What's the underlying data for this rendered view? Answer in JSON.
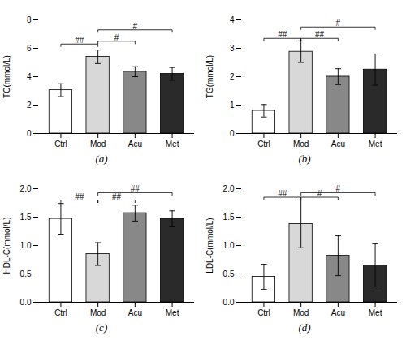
{
  "chart_data": [
    {
      "type": "bar",
      "caption": "(a)",
      "ylabel": "TC(mmol/L)",
      "ylim": [
        0,
        8
      ],
      "yticks": [
        0,
        2,
        4,
        6,
        8
      ],
      "categories": [
        "Ctrl",
        "Mod",
        "Acu",
        "Met"
      ],
      "values": [
        3.05,
        5.4,
        4.35,
        4.2
      ],
      "errors": [
        0.45,
        0.48,
        0.35,
        0.45
      ],
      "colors": [
        "#ffffff",
        "#d8d8d8",
        "#888888",
        "#2a2a2a"
      ],
      "annotations": [
        {
          "text": "##",
          "x": [
            "Ctrl",
            "Mod"
          ],
          "y": 6.3
        },
        {
          "text": "#",
          "x": [
            "Mod",
            "Acu"
          ],
          "y": 6.5
        },
        {
          "text": "#",
          "x": [
            "Mod",
            "Met"
          ],
          "y": 7.3
        }
      ]
    },
    {
      "type": "bar",
      "caption": "(b)",
      "ylabel": "TG(mmol/L)",
      "ylim": [
        0,
        4
      ],
      "yticks": [
        0,
        1,
        2,
        3,
        4
      ],
      "categories": [
        "Ctrl",
        "Mod",
        "Acu",
        "Met"
      ],
      "values": [
        0.8,
        2.88,
        2.0,
        2.25
      ],
      "errors": [
        0.22,
        0.38,
        0.28,
        0.55
      ],
      "colors": [
        "#ffffff",
        "#d8d8d8",
        "#888888",
        "#2a2a2a"
      ],
      "annotations": [
        {
          "text": "##",
          "x": [
            "Ctrl",
            "Mod"
          ],
          "y": 3.35
        },
        {
          "text": "##",
          "x": [
            "Mod",
            "Acu"
          ],
          "y": 3.35
        },
        {
          "text": "#",
          "x": [
            "Mod",
            "Met"
          ],
          "y": 3.75
        }
      ]
    },
    {
      "type": "bar",
      "caption": "(c)",
      "ylabel": "HDL-C(mmol/L)",
      "ylim": [
        0,
        2.0
      ],
      "yticks": [
        {
          "value": 0,
          "label": "0.0"
        },
        0.5,
        {
          "value": 1,
          "label": "1.0"
        },
        1.5,
        {
          "value": 2,
          "label": "2.0"
        }
      ],
      "categories": [
        "Ctrl",
        "Mod",
        "Acu",
        "Met"
      ],
      "values": [
        1.47,
        0.85,
        1.57,
        1.47
      ],
      "errors": [
        0.27,
        0.2,
        0.14,
        0.14
      ],
      "colors": [
        "#ffffff",
        "#d8d8d8",
        "#888888",
        "#2a2a2a"
      ],
      "annotations": [
        {
          "text": "##",
          "x": [
            "Ctrl",
            "Mod"
          ],
          "y": 1.8
        },
        {
          "text": "##",
          "x": [
            "Mod",
            "Acu"
          ],
          "y": 1.8
        },
        {
          "text": "##",
          "x": [
            "Mod",
            "Met"
          ],
          "y": 1.93
        }
      ]
    },
    {
      "type": "bar",
      "caption": "(d)",
      "ylabel": "LDL-C(mmol/L)",
      "ylim": [
        0,
        2.0
      ],
      "yticks": [
        {
          "value": 0,
          "label": "0.0"
        },
        0.5,
        {
          "value": 1,
          "label": "1.0"
        },
        1.5,
        {
          "value": 2,
          "label": "2.0"
        }
      ],
      "categories": [
        "Ctrl",
        "Mod",
        "Acu",
        "Met"
      ],
      "values": [
        0.45,
        1.38,
        0.82,
        0.65
      ],
      "errors": [
        0.22,
        0.42,
        0.35,
        0.38
      ],
      "colors": [
        "#ffffff",
        "#d8d8d8",
        "#888888",
        "#2a2a2a"
      ],
      "annotations": [
        {
          "text": "##",
          "x": [
            "Ctrl",
            "Mod"
          ],
          "y": 1.85
        },
        {
          "text": "#",
          "x": [
            "Mod",
            "Acu"
          ],
          "y": 1.85
        },
        {
          "text": "#",
          "x": [
            "Mod",
            "Met"
          ],
          "y": 1.93
        }
      ]
    }
  ]
}
